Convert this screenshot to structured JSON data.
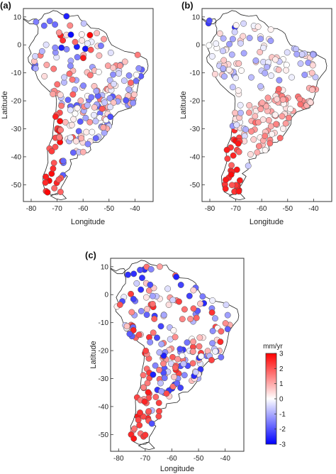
{
  "colors": {
    "negative": "#0000ff",
    "zero": "#ffffff",
    "positive": "#ff0000",
    "coast": "#222222",
    "station_edge": "#555555"
  },
  "colorbar": {
    "title": "mm/yr",
    "ticks": [
      3,
      2,
      1,
      0,
      -1,
      -2,
      -3
    ],
    "range": [
      -3,
      3
    ]
  },
  "panels": [
    {
      "id": "a",
      "label": "(a)",
      "xlabel": "Longitude",
      "ylabel": "Latitude",
      "xticks": [
        -80,
        -70,
        -60,
        -50,
        -40
      ],
      "yticks": [
        10,
        0,
        -10,
        -20,
        -30,
        -40,
        -50
      ],
      "xlim": [
        -83,
        -33
      ],
      "ylim": [
        -56,
        13
      ],
      "seed": 11
    },
    {
      "id": "b",
      "label": "(b)",
      "xlabel": "Longitude",
      "ylabel": "Latitude",
      "xticks": [
        -80,
        -70,
        -60,
        -50,
        -40
      ],
      "yticks": [
        10,
        0,
        -10,
        -20,
        -30,
        -40,
        -50
      ],
      "xlim": [
        -83,
        -33
      ],
      "ylim": [
        -56,
        13
      ],
      "seed": 23
    },
    {
      "id": "c",
      "label": "(c)",
      "xlabel": "Longitude",
      "ylabel": "Latitude",
      "xticks": [
        -80,
        -70,
        -60,
        -50,
        -40
      ],
      "yticks": [
        10,
        0,
        -10,
        -20,
        -30,
        -40,
        -50
      ],
      "xlim": [
        -83,
        -33
      ],
      "ylim": [
        -56,
        13
      ],
      "seed": 37
    }
  ]
}
